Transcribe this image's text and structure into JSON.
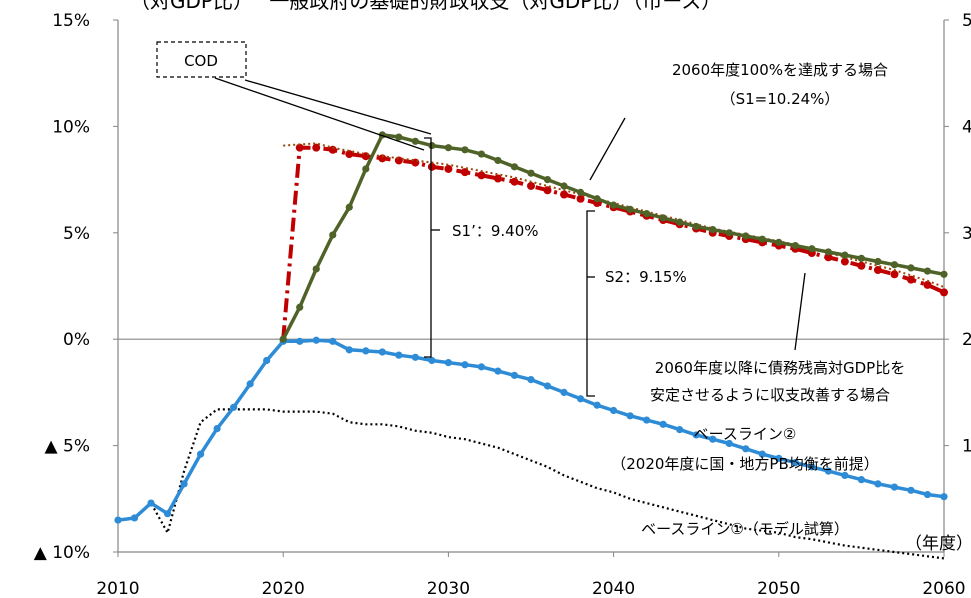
{
  "chart_data": {
    "type": "line",
    "title": "（対GDP比）　 一般政府の基礎的財政収支（対GDP比）（市ース）",
    "ylim": [
      -10,
      15
    ],
    "xlim": [
      2010,
      2060
    ],
    "x_ticks": [
      "2010",
      "2020",
      "2030",
      "2040",
      "2050",
      "2060"
    ],
    "y_ticks": [
      {
        "v": 15,
        "label": "15%"
      },
      {
        "v": 10,
        "label": "10%"
      },
      {
        "v": 5,
        "label": "5%"
      },
      {
        "v": 0,
        "label": "0%"
      },
      {
        "v": -5,
        "label": "▲ 5%"
      },
      {
        "v": -10,
        "label": "▲ 10%"
      }
    ],
    "right_ticks": [
      {
        "v": 15,
        "label": "5"
      },
      {
        "v": 10,
        "label": "4"
      },
      {
        "v": 5,
        "label": "3"
      },
      {
        "v": 0,
        "label": "2"
      },
      {
        "v": -5,
        "label": "1"
      }
    ],
    "xunit": "（年度）",
    "grid": "horizontal zero line only",
    "colors": {
      "green": "#4f6228",
      "blue": "#2e8bd6",
      "red": "#c00000",
      "dotted_red": "#984807",
      "black": "#000000"
    },
    "series": [
      {
        "key": "s1_2060_100",
        "color": "#4f6228",
        "x": [
          2020,
          2021,
          2022,
          2023,
          2024,
          2025,
          2026,
          2027,
          2028,
          2029,
          2030,
          2031,
          2032,
          2033,
          2034,
          2035,
          2036,
          2037,
          2038,
          2039,
          2040,
          2041,
          2042,
          2043,
          2044,
          2045,
          2046,
          2047,
          2048,
          2049,
          2050,
          2051,
          2052,
          2053,
          2054,
          2055,
          2056,
          2057,
          2058,
          2059,
          2060
        ],
        "y": [
          0,
          1.5,
          3.3,
          4.9,
          6.2,
          8.0,
          9.6,
          9.5,
          9.3,
          9.1,
          9.0,
          8.9,
          8.7,
          8.4,
          8.1,
          7.8,
          7.5,
          7.2,
          6.9,
          6.6,
          6.3,
          6.1,
          5.9,
          5.7,
          5.5,
          5.3,
          5.15,
          5.0,
          4.85,
          4.7,
          4.55,
          4.4,
          4.25,
          4.1,
          3.95,
          3.8,
          3.65,
          3.5,
          3.35,
          3.2,
          3.05
        ]
      },
      {
        "key": "s2_stabilize",
        "color": "#c00000",
        "x": [
          2020,
          2021,
          2022,
          2023,
          2024,
          2025,
          2026,
          2027,
          2028,
          2029,
          2030,
          2031,
          2032,
          2033,
          2034,
          2035,
          2036,
          2037,
          2038,
          2039,
          2040,
          2041,
          2042,
          2043,
          2044,
          2045,
          2046,
          2047,
          2048,
          2049,
          2050,
          2051,
          2052,
          2053,
          2054,
          2055,
          2056,
          2057,
          2058,
          2059,
          2060
        ],
        "y": [
          0,
          9.0,
          9.0,
          8.9,
          8.7,
          8.6,
          8.5,
          8.4,
          8.3,
          8.1,
          8.0,
          7.85,
          7.7,
          7.55,
          7.4,
          7.2,
          7.0,
          6.8,
          6.6,
          6.4,
          6.2,
          6.0,
          5.8,
          5.6,
          5.4,
          5.2,
          5.0,
          4.85,
          4.7,
          4.55,
          4.4,
          4.25,
          4.05,
          3.85,
          3.65,
          3.45,
          3.25,
          3.05,
          2.8,
          2.55,
          2.2
        ]
      },
      {
        "key": "s2_dotted",
        "color": "#984807",
        "x": [
          2020,
          2021,
          2022,
          2023,
          2024,
          2025,
          2026,
          2027,
          2028,
          2029,
          2030,
          2031,
          2032,
          2033,
          2034,
          2035,
          2036,
          2037,
          2038,
          2039,
          2040,
          2041,
          2042,
          2043,
          2044,
          2045,
          2046,
          2047,
          2048,
          2049,
          2050,
          2051,
          2052,
          2053,
          2054,
          2055,
          2056,
          2057,
          2058,
          2059,
          2060
        ],
        "y": [
          9.1,
          9.15,
          9.2,
          9.0,
          8.85,
          8.7,
          8.6,
          8.5,
          8.4,
          8.3,
          8.2,
          8.05,
          7.9,
          7.75,
          7.6,
          7.4,
          7.2,
          7.0,
          6.8,
          6.6,
          6.4,
          6.2,
          6.0,
          5.8,
          5.6,
          5.4,
          5.2,
          5.05,
          4.9,
          4.75,
          4.6,
          4.45,
          4.25,
          4.05,
          3.85,
          3.65,
          3.45,
          3.25,
          3.0,
          2.75,
          2.45
        ]
      },
      {
        "key": "baseline2",
        "color": "#2e8bd6",
        "x": [
          2010,
          2011,
          2012,
          2013,
          2014,
          2015,
          2016,
          2017,
          2018,
          2019,
          2020,
          2021,
          2022,
          2023,
          2024,
          2025,
          2026,
          2027,
          2028,
          2029,
          2030,
          2031,
          2032,
          2033,
          2034,
          2035,
          2036,
          2037,
          2038,
          2039,
          2040,
          2041,
          2042,
          2043,
          2044,
          2045,
          2046,
          2047,
          2048,
          2049,
          2050,
          2051,
          2052,
          2053,
          2054,
          2055,
          2056,
          2057,
          2058,
          2059,
          2060
        ],
        "y": [
          -8.5,
          -8.4,
          -7.7,
          -8.2,
          -6.8,
          -5.4,
          -4.2,
          -3.2,
          -2.1,
          -1.0,
          -0.1,
          -0.1,
          -0.05,
          -0.1,
          -0.5,
          -0.55,
          -0.6,
          -0.75,
          -0.85,
          -1.0,
          -1.1,
          -1.2,
          -1.3,
          -1.5,
          -1.7,
          -1.9,
          -2.2,
          -2.5,
          -2.8,
          -3.1,
          -3.35,
          -3.6,
          -3.8,
          -4.0,
          -4.25,
          -4.5,
          -4.7,
          -4.9,
          -5.15,
          -5.4,
          -5.6,
          -5.8,
          -6.0,
          -6.2,
          -6.4,
          -6.6,
          -6.8,
          -6.95,
          -7.1,
          -7.3,
          -7.4
        ]
      },
      {
        "key": "baseline1",
        "color": "#000000",
        "x": [
          2010,
          2011,
          2012,
          2013,
          2014,
          2015,
          2016,
          2017,
          2018,
          2019,
          2020,
          2021,
          2022,
          2023,
          2024,
          2025,
          2026,
          2027,
          2028,
          2029,
          2030,
          2031,
          2032,
          2033,
          2034,
          2035,
          2036,
          2037,
          2038,
          2039,
          2040,
          2041,
          2042,
          2043,
          2044,
          2045,
          2046,
          2047,
          2048,
          2049,
          2050,
          2051,
          2052,
          2053,
          2054,
          2055,
          2056,
          2057,
          2058,
          2059,
          2060
        ],
        "y": [
          -8.5,
          -8.4,
          -7.7,
          -9.1,
          -6.2,
          -3.9,
          -3.3,
          -3.3,
          -3.3,
          -3.3,
          -3.4,
          -3.4,
          -3.4,
          -3.5,
          -3.9,
          -4.0,
          -4.0,
          -4.1,
          -4.3,
          -4.4,
          -4.6,
          -4.7,
          -4.9,
          -5.1,
          -5.4,
          -5.7,
          -6.0,
          -6.4,
          -6.7,
          -7.0,
          -7.2,
          -7.5,
          -7.7,
          -7.9,
          -8.1,
          -8.3,
          -8.5,
          -8.7,
          -8.9,
          -9.0,
          -9.1,
          -9.3,
          -9.4,
          -9.55,
          -9.7,
          -9.8,
          -9.9,
          -10.0,
          -10.1,
          -10.2,
          -10.3
        ]
      }
    ],
    "annotations": {
      "cod": "COD",
      "s1_label_1": "2060年度100%を達成する場合",
      "s1_label_2": "（S1=10.24%）",
      "s1prime": "S1’：9.40%",
      "s2": "S2：9.15%",
      "stab_1": "2060年度以降に債務残高対GDP比を",
      "stab_2": "安定させるように収支改善する場合",
      "base2_1": "ベースライン②",
      "base2_2": "（2020年度に国・地方PB均衡を前提）",
      "base1": "ベースライン①（モデル試算）"
    }
  }
}
